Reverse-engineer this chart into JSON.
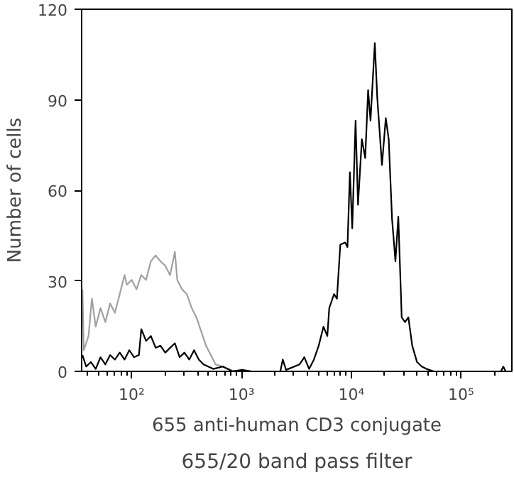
{
  "chart_data": {
    "type": "line",
    "xlabel": "655 anti-human CD3 conjugate",
    "ylabel": "Number of cells",
    "annotations": [
      "655/20 band pass filter"
    ],
    "log": "x",
    "xlim": [
      35,
      290000
    ],
    "ylim": [
      0,
      120
    ],
    "xticks": [
      {
        "value": 40,
        "label": null
      },
      {
        "value": 50,
        "label": null
      },
      {
        "value": 60,
        "label": null
      },
      {
        "value": 70,
        "label": null
      },
      {
        "value": 80,
        "label": null
      },
      {
        "value": 90,
        "label": null
      },
      {
        "value": 100,
        "label": "10²"
      },
      {
        "value": 200,
        "label": null
      },
      {
        "value": 300,
        "label": null
      },
      {
        "value": 400,
        "label": null
      },
      {
        "value": 500,
        "label": null
      },
      {
        "value": 600,
        "label": null
      },
      {
        "value": 700,
        "label": null
      },
      {
        "value": 800,
        "label": null
      },
      {
        "value": 900,
        "label": null
      },
      {
        "value": 1000,
        "label": "10³"
      },
      {
        "value": 2000,
        "label": null
      },
      {
        "value": 3000,
        "label": null
      },
      {
        "value": 4000,
        "label": null
      },
      {
        "value": 5000,
        "label": null
      },
      {
        "value": 6000,
        "label": null
      },
      {
        "value": 7000,
        "label": null
      },
      {
        "value": 8000,
        "label": null
      },
      {
        "value": 9000,
        "label": null
      },
      {
        "value": 10000,
        "label": "10⁴"
      },
      {
        "value": 20000,
        "label": null
      },
      {
        "value": 30000,
        "label": null
      },
      {
        "value": 40000,
        "label": null
      },
      {
        "value": 50000,
        "label": null
      },
      {
        "value": 60000,
        "label": null
      },
      {
        "value": 70000,
        "label": null
      },
      {
        "value": 80000,
        "label": null
      },
      {
        "value": 90000,
        "label": null
      },
      {
        "value": 100000,
        "label": "10⁵"
      },
      {
        "value": 200000,
        "label": null
      }
    ],
    "yticks": [
      0,
      30,
      60,
      90,
      120
    ],
    "series": [
      {
        "color": "#a0a0a0",
        "x": [
          35.6,
          36.6,
          40.4,
          43.4,
          47,
          52,
          57.5,
          63.6,
          70.3,
          77.8,
          86,
          90.4,
          100,
          110.6,
          122.3,
          135.2,
          149.5,
          165.3,
          182.8,
          202.2,
          223.6,
          247.2,
          259.9,
          287.4,
          317.8,
          351.5,
          388.7,
          429.8,
          475.3,
          525.5,
          581.1,
          675.5,
          826,
          1010
        ],
        "values": [
          27.2,
          7,
          11.7,
          24.1,
          14.8,
          21,
          16.3,
          22.5,
          19.4,
          25.6,
          31.9,
          28.7,
          30.3,
          27.2,
          31.9,
          30.3,
          36.5,
          38.4,
          36.5,
          35,
          31.9,
          39.6,
          30.3,
          27.2,
          25.6,
          21,
          17.9,
          13.2,
          8.5,
          5.4,
          2.3,
          1.6,
          0.3,
          0
        ]
      },
      {
        "color": "#000000",
        "x": [
          35.6,
          38.5,
          42.5,
          47,
          52,
          57.5,
          63.6,
          70.3,
          77.8,
          86,
          95.1,
          105.1,
          116.3,
          122.3,
          135.2,
          149.5,
          165.3,
          182.8,
          202.2,
          223.6,
          247.2,
          273.3,
          302.2,
          334.2,
          369.6,
          408.6,
          451.8,
          552.4,
          675.5,
          826,
          1010,
          1235,
          2258,
          2375,
          2548,
          3377,
          3733,
          4128,
          4563,
          5047,
          5580,
          6050,
          6300,
          6966,
          7396,
          7940,
          8780,
          9230,
          9710,
          10200,
          10940,
          11510,
          12480,
          13390,
          14230,
          14960,
          16380,
          17220,
          19020,
          20610,
          21920,
          23500,
          25230,
          26800,
          28770,
          30850,
          33100,
          35900,
          39650,
          43830,
          48470,
          56400,
          230400,
          242300,
          254700,
          290000
        ],
        "values": [
          5.4,
          1.6,
          3.1,
          0.8,
          4.7,
          2.3,
          5.4,
          3.9,
          6.2,
          3.9,
          7,
          4.7,
          5.4,
          14,
          10.1,
          11.7,
          7.8,
          8.5,
          6.2,
          7.8,
          9.3,
          4.7,
          6.2,
          3.9,
          7,
          3.9,
          2.3,
          0.8,
          1.6,
          0,
          0.5,
          0,
          0,
          3.9,
          0.5,
          2.3,
          4.7,
          0.8,
          3.9,
          8.5,
          14.8,
          11.7,
          21,
          25.6,
          24.1,
          42,
          42.7,
          41.2,
          66,
          47.4,
          83.1,
          55.2,
          76.9,
          70.7,
          93.2,
          83.1,
          108.8,
          90.9,
          68.4,
          83.9,
          76.9,
          50.5,
          36.5,
          51.3,
          17.9,
          16.3,
          17.9,
          8.5,
          3.1,
          1.6,
          0.8,
          0,
          0,
          1.6,
          0,
          0
        ]
      }
    ]
  }
}
